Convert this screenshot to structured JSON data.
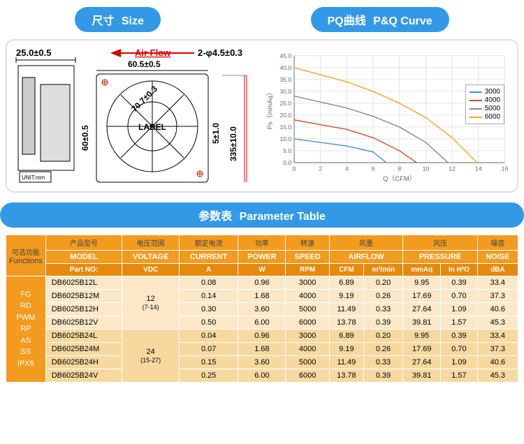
{
  "headers": {
    "size": {
      "cn": "尺寸",
      "en": "Size"
    },
    "pq": {
      "cn": "PQ曲线",
      "en": "P&Q Curve"
    },
    "param": {
      "cn": "参数表",
      "en": "Parameter Table"
    }
  },
  "drawing": {
    "airflow": "Air Flow",
    "dim_left": "25.0±0.5",
    "dim_top": "2-φ4.5±0.3",
    "dim_mid": "60.5±0.5",
    "dim_h": "60±0.5",
    "dim_diag": "70.7±0.3",
    "dim_right": "5±1.0",
    "dim_lead": "335±10.0",
    "label": "LABEL",
    "unit": "UNIT:mm"
  },
  "chart": {
    "xlabel": "Q（CFM）",
    "ylabel": "Ps（mmAq）",
    "xlim": [
      0,
      16
    ],
    "ylim": [
      0,
      45
    ],
    "xtick": 2,
    "ytick": 5,
    "background": "#ffffff",
    "grid_color": "#cccccc",
    "axis_color": "#666666",
    "series": [
      {
        "name": "3000",
        "color": "#4a90d9",
        "width": 1.5,
        "points": [
          [
            0,
            10
          ],
          [
            2,
            8.5
          ],
          [
            4,
            7
          ],
          [
            6,
            4.5
          ],
          [
            7,
            0
          ]
        ]
      },
      {
        "name": "4000",
        "color": "#d94a2e",
        "width": 1.5,
        "points": [
          [
            0,
            18
          ],
          [
            2,
            16
          ],
          [
            4,
            14
          ],
          [
            6,
            10.5
          ],
          [
            8,
            5
          ],
          [
            9.3,
            0
          ]
        ]
      },
      {
        "name": "5000",
        "color": "#8a8a8a",
        "width": 1.5,
        "points": [
          [
            0,
            28
          ],
          [
            2,
            25.5
          ],
          [
            4,
            23
          ],
          [
            6,
            19.5
          ],
          [
            8,
            15
          ],
          [
            10,
            8.5
          ],
          [
            11.7,
            0
          ]
        ]
      },
      {
        "name": "6000",
        "color": "#f5a623",
        "width": 1.5,
        "points": [
          [
            0,
            40
          ],
          [
            2,
            37
          ],
          [
            4,
            34
          ],
          [
            6,
            30
          ],
          [
            8,
            25
          ],
          [
            10,
            19
          ],
          [
            12,
            10.5
          ],
          [
            13.9,
            0
          ]
        ]
      }
    ]
  },
  "table": {
    "func_col": {
      "cn": "可选功能",
      "en": "Functions",
      "list": [
        "FG",
        "RD",
        "PWM",
        "RP",
        "AS",
        "SS",
        "IPX5"
      ]
    },
    "headers": [
      {
        "cn": "产品型号",
        "en": "MODEL",
        "sub": "Part NO:"
      },
      {
        "cn": "电压范围",
        "en": "VOLTAGE",
        "sub": "VDC"
      },
      {
        "cn": "额定电流",
        "en": "CURRENT",
        "sub": "A"
      },
      {
        "cn": "功率",
        "en": "POWER",
        "sub": "W"
      },
      {
        "cn": "转速",
        "en": "SPEED",
        "sub": "RPM"
      },
      {
        "cn": "风量",
        "en": "AIRFLOW",
        "sub": "CFM",
        "sub2": "m³/min"
      },
      {
        "cn": "风压",
        "en": "PRESSURE",
        "sub": "mmAq",
        "sub2": "In H²O"
      },
      {
        "cn": "噪音",
        "en": "NOISE",
        "sub": "dBA"
      }
    ],
    "groups": [
      {
        "volt": "12",
        "range": "(7-14)",
        "cls": "row-grp1",
        "rows": [
          {
            "model": "DB6025B12L",
            "a": "0.08",
            "w": "0.96",
            "rpm": "3000",
            "cfm": "6.89",
            "m3": "0.20",
            "mmaq": "9.95",
            "inh": "0.39",
            "dba": "33.4"
          },
          {
            "model": "DB6025B12M",
            "a": "0.14",
            "w": "1.68",
            "rpm": "4000",
            "cfm": "9.19",
            "m3": "0.26",
            "mmaq": "17.69",
            "inh": "0.70",
            "dba": "37.3"
          },
          {
            "model": "DB6025B12H",
            "a": "0.30",
            "w": "3.60",
            "rpm": "5000",
            "cfm": "11.49",
            "m3": "0.33",
            "mmaq": "27.64",
            "inh": "1.09",
            "dba": "40.6"
          },
          {
            "model": "DB6025B12V",
            "a": "0.50",
            "w": "6.00",
            "rpm": "6000",
            "cfm": "13.78",
            "m3": "0.39",
            "mmaq": "39.81",
            "inh": "1.57",
            "dba": "45.3"
          }
        ]
      },
      {
        "volt": "24",
        "range": "(15-27)",
        "cls": "row-grp2",
        "rows": [
          {
            "model": "DB6025B24L",
            "a": "0.04",
            "w": "0.96",
            "rpm": "3000",
            "cfm": "6.89",
            "m3": "0.20",
            "mmaq": "9.95",
            "inh": "0.39",
            "dba": "33.4"
          },
          {
            "model": "DB6025B24M",
            "a": "0.07",
            "w": "1.68",
            "rpm": "4000",
            "cfm": "9.19",
            "m3": "0.26",
            "mmaq": "17.69",
            "inh": "0.70",
            "dba": "37.3"
          },
          {
            "model": "DB6025B24H",
            "a": "0.15",
            "w": "3.60",
            "rpm": "5000",
            "cfm": "11.49",
            "m3": "0.33",
            "mmaq": "27.64",
            "inh": "1.09",
            "dba": "40.6"
          },
          {
            "model": "DB6025B24V",
            "a": "0.25",
            "w": "6.00",
            "rpm": "6000",
            "cfm": "13.78",
            "m3": "0.39",
            "mmaq": "39.81",
            "inh": "1.57",
            "dba": "45.3"
          }
        ]
      }
    ]
  }
}
